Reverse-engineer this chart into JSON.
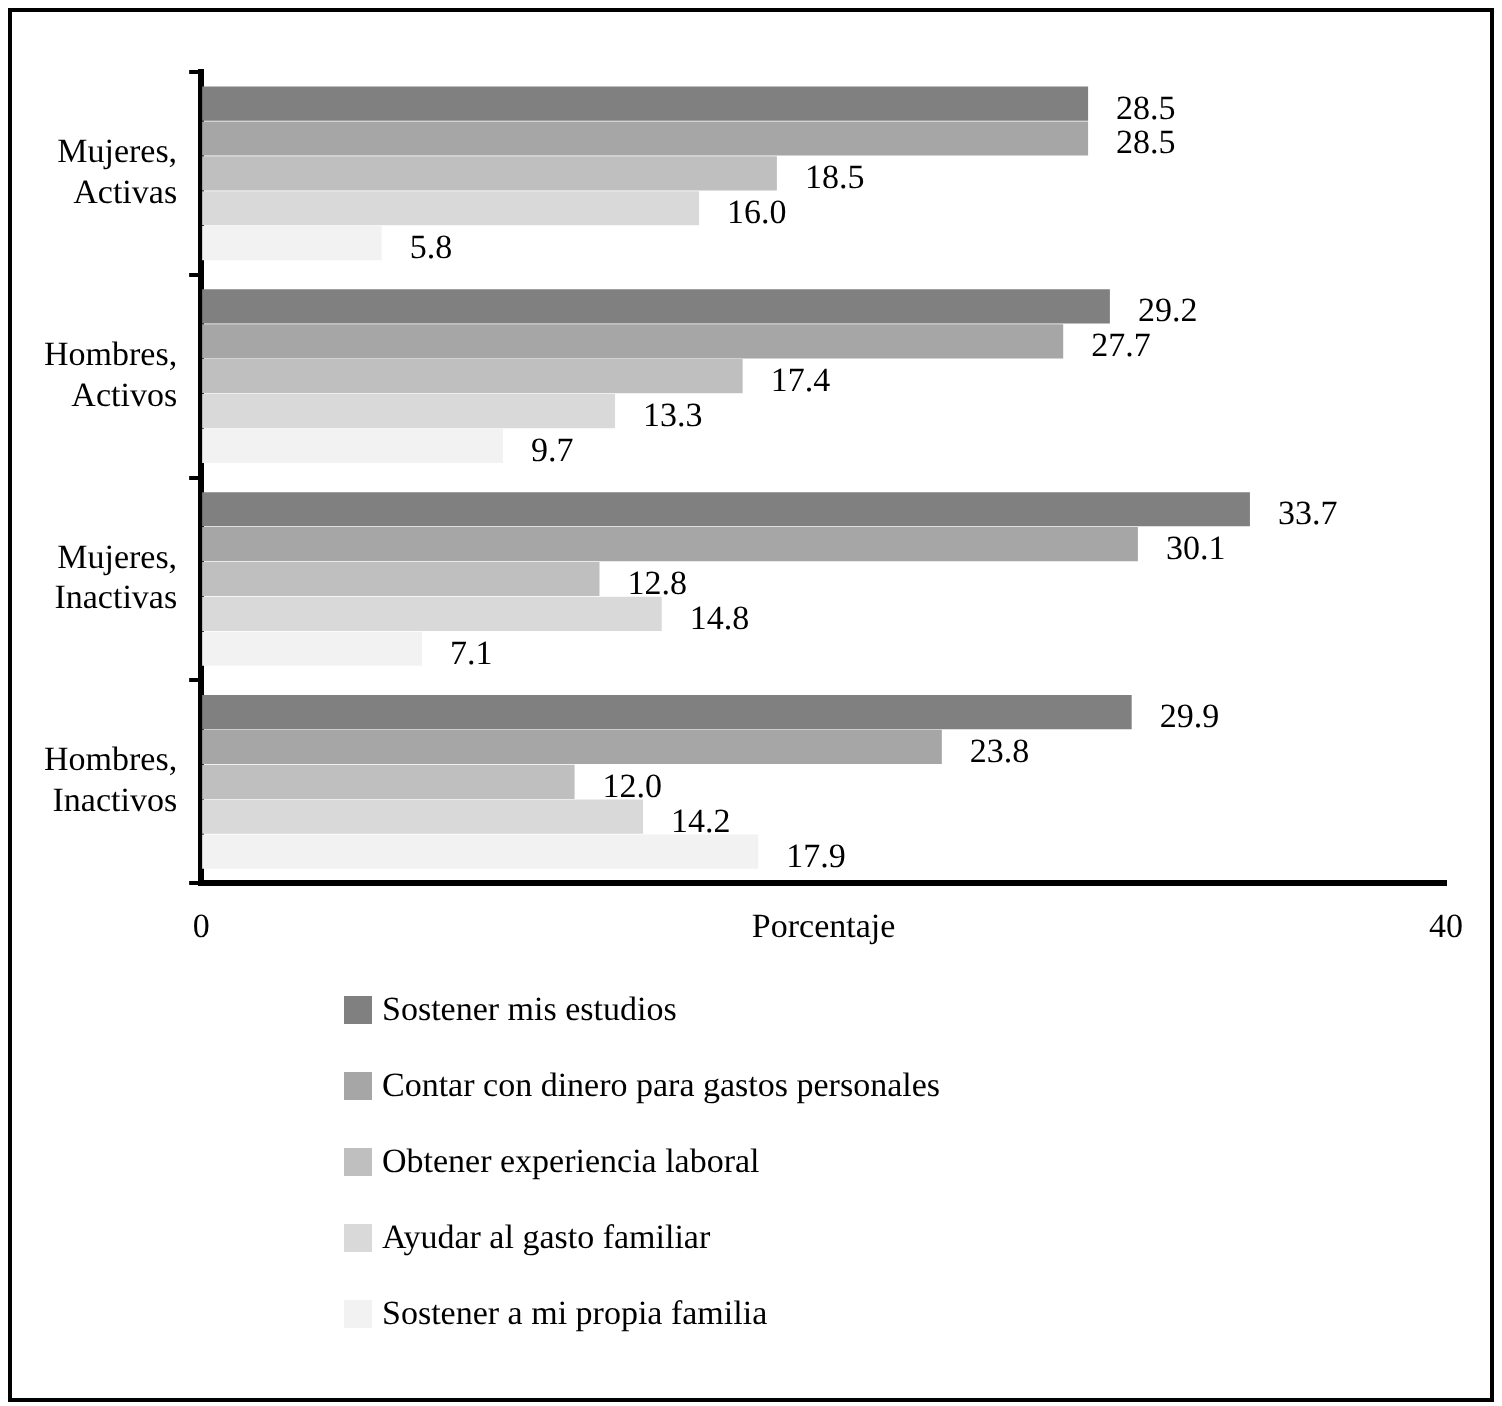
{
  "chart_data": {
    "type": "bar",
    "orientation": "horizontal",
    "xlabel": "Porcentaje",
    "categories": [
      "Mujeres, Activas",
      "Hombres, Activos",
      "Mujeres, Inactivas",
      "Hombres, Inactivos"
    ],
    "series": [
      {
        "name": "Sostener mis estudios",
        "color": "#808080",
        "values": [
          28.5,
          29.2,
          33.7,
          29.9
        ],
        "value_labels": [
          "28.5",
          "29.2",
          "33.7",
          "29.9"
        ]
      },
      {
        "name": "Contar con dinero para gastos personales",
        "color": "#a6a6a6",
        "values": [
          28.5,
          27.7,
          30.1,
          23.8
        ],
        "value_labels": [
          "28.5",
          "27.7",
          "30.1",
          "23.8"
        ]
      },
      {
        "name": "Obtener experiencia laboral",
        "color": "#bfbfbf",
        "values": [
          18.5,
          17.4,
          12.8,
          12.0
        ],
        "value_labels": [
          "18.5",
          "17.4",
          "12.8",
          "12.0"
        ]
      },
      {
        "name": "Ayudar al gasto familiar",
        "color": "#d9d9d9",
        "values": [
          16.0,
          13.3,
          14.8,
          14.2
        ],
        "value_labels": [
          "16.0",
          "13.3",
          "14.8",
          "14.2"
        ]
      },
      {
        "name": "Sostener a mi propia familia",
        "color": "#f2f2f2",
        "values": [
          5.8,
          9.7,
          7.1,
          17.9
        ],
        "value_labels": [
          "5.8",
          "9.7",
          "7.1",
          "17.9"
        ]
      }
    ],
    "xlim": [
      0,
      40
    ],
    "xticks": [
      0,
      40
    ],
    "legend": "bottom"
  }
}
